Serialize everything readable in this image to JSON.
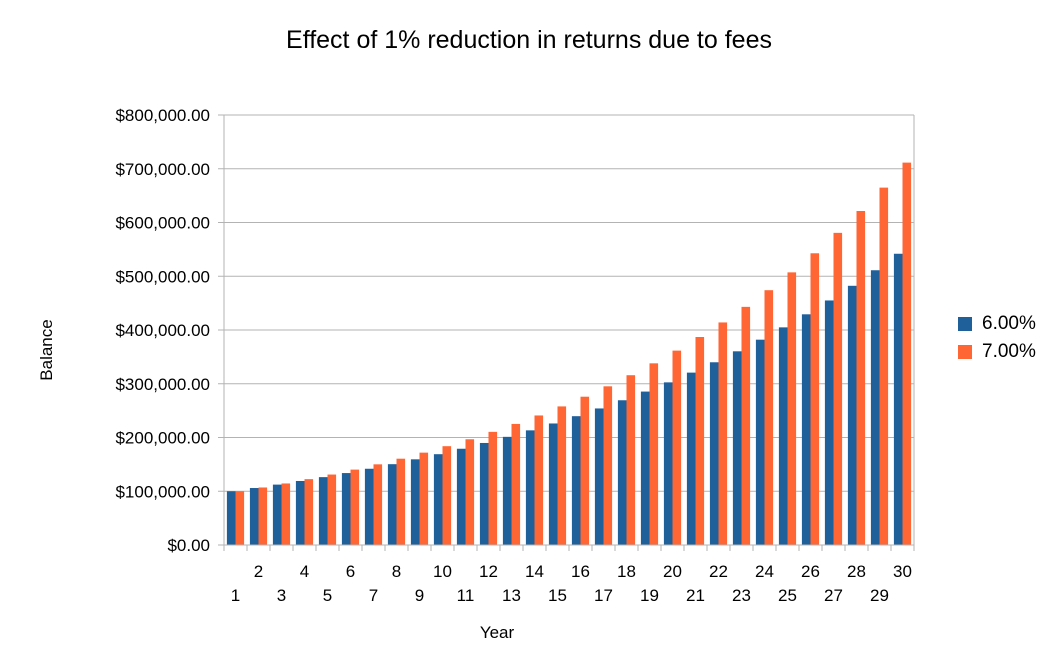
{
  "chart_data": {
    "type": "bar",
    "title": "Effect of 1% reduction in returns due to fees",
    "xlabel": "Year",
    "ylabel": "Balance",
    "ylim": [
      0,
      800000
    ],
    "yticks": [
      "$0.00",
      "$100,000.00",
      "$200,000.00",
      "$300,000.00",
      "$400,000.00",
      "$500,000.00",
      "$600,000.00",
      "$700,000.00",
      "$800,000.00"
    ],
    "grid": true,
    "legend_position": "right",
    "categories": [
      "1",
      "2",
      "3",
      "4",
      "5",
      "6",
      "7",
      "8",
      "9",
      "10",
      "11",
      "12",
      "13",
      "14",
      "15",
      "16",
      "17",
      "18",
      "19",
      "20",
      "21",
      "22",
      "23",
      "24",
      "25",
      "26",
      "27",
      "28",
      "29",
      "30"
    ],
    "series": [
      {
        "name": "6.00%",
        "color": "#1f5f9a",
        "values": [
          100000,
          106000,
          112360,
          119102,
          126248,
          133823,
          141852,
          150363,
          159385,
          168948,
          179085,
          189830,
          201220,
          213293,
          226090,
          239656,
          254035,
          269277,
          285434,
          302560,
          320714,
          339956,
          360354,
          381975,
          404893,
          429187,
          454938,
          482235,
          511169,
          541839
        ]
      },
      {
        "name": "7.00%",
        "color": "#ff6633",
        "values": [
          100000,
          107000,
          114490,
          122504,
          131080,
          140255,
          150073,
          160578,
          171819,
          183846,
          196715,
          210485,
          225219,
          240985,
          257853,
          275903,
          295216,
          315882,
          337993,
          361653,
          386968,
          414056,
          443040,
          474053,
          507237,
          542743,
          580735,
          621387,
          664884,
          711426
        ]
      }
    ]
  }
}
